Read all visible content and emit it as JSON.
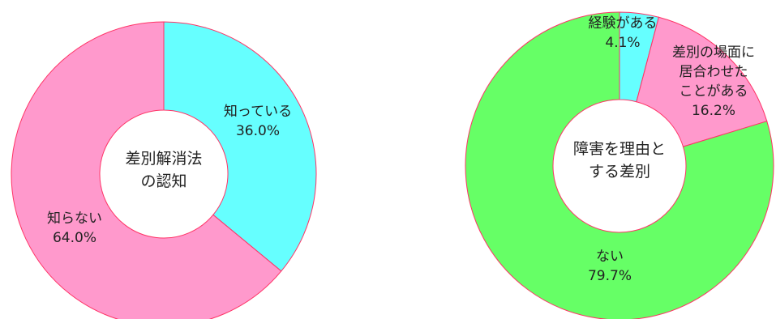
{
  "chart_data": [
    {
      "type": "pie",
      "variant": "donut",
      "center_title": [
        "差別解消法",
        "の認知"
      ],
      "slices": [
        {
          "label": [
            "知っている"
          ],
          "value": 36.0,
          "value_text": "36.0%",
          "color": "#66ffff"
        },
        {
          "label": [
            "知らない"
          ],
          "value": 64.0,
          "value_text": "64.0%",
          "color": "#ff99cc"
        }
      ],
      "start": "12 o'clock",
      "direction": "clockwise",
      "slice_border_color": "#ff3366"
    },
    {
      "type": "pie",
      "variant": "donut",
      "center_title": [
        "障害を理由と",
        "する差別"
      ],
      "slices": [
        {
          "label": [
            "経験がある"
          ],
          "value": 4.1,
          "value_text": "4.1%",
          "color": "#66ffff"
        },
        {
          "label": [
            "差別の場面に",
            "居合わせた",
            "ことがある"
          ],
          "value": 16.2,
          "value_text": "16.2%",
          "color": "#ff99cc"
        },
        {
          "label": [
            "ない"
          ],
          "value": 79.7,
          "value_text": "79.7%",
          "color": "#66ff66"
        }
      ],
      "start": "12 o'clock",
      "direction": "clockwise",
      "slice_border_color": "#ff3366"
    }
  ]
}
